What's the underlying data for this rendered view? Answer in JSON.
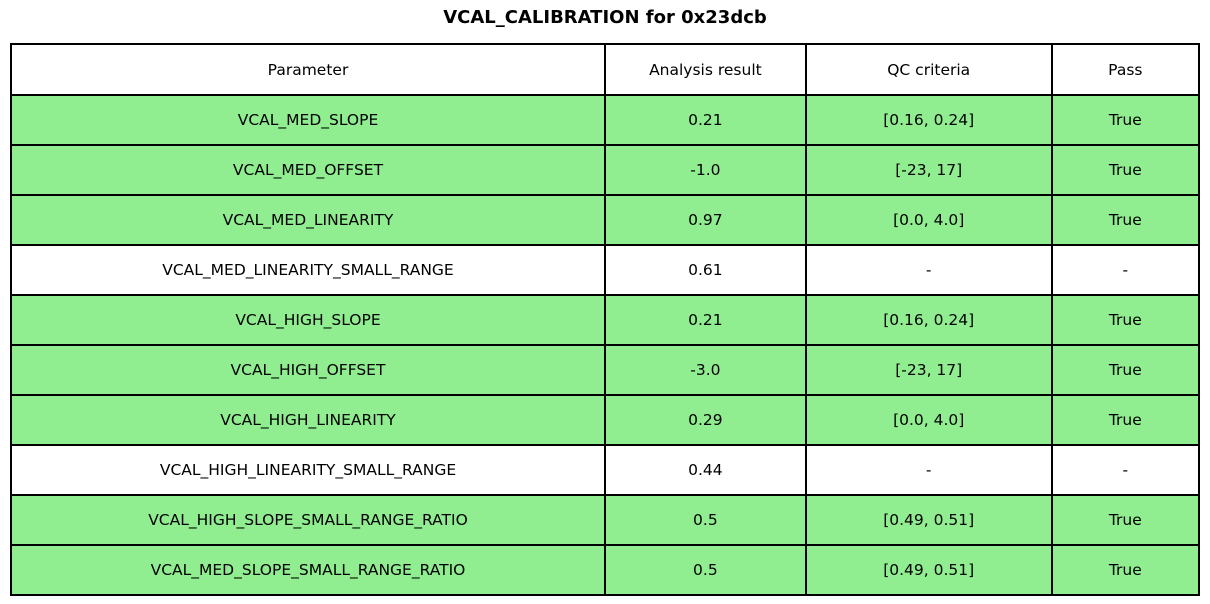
{
  "title": "VCAL_CALIBRATION for 0x23dcb",
  "colors": {
    "pass_row_green": "#90ee90",
    "neutral_row_white": "#ffffff",
    "border_black": "#000000"
  },
  "chart_data": {
    "type": "table",
    "title": "VCAL_CALIBRATION for 0x23dcb",
    "columns": [
      "Parameter",
      "Analysis result",
      "QC criteria",
      "Pass"
    ],
    "rows": [
      {
        "parameter": "VCAL_MED_SLOPE",
        "result": "0.21",
        "criteria": "[0.16, 0.24]",
        "pass": "True",
        "highlight": true
      },
      {
        "parameter": "VCAL_MED_OFFSET",
        "result": "-1.0",
        "criteria": "[-23, 17]",
        "pass": "True",
        "highlight": true
      },
      {
        "parameter": "VCAL_MED_LINEARITY",
        "result": "0.97",
        "criteria": "[0.0, 4.0]",
        "pass": "True",
        "highlight": true
      },
      {
        "parameter": "VCAL_MED_LINEARITY_SMALL_RANGE",
        "result": "0.61",
        "criteria": "-",
        "pass": "-",
        "highlight": false
      },
      {
        "parameter": "VCAL_HIGH_SLOPE",
        "result": "0.21",
        "criteria": "[0.16, 0.24]",
        "pass": "True",
        "highlight": true
      },
      {
        "parameter": "VCAL_HIGH_OFFSET",
        "result": "-3.0",
        "criteria": "[-23, 17]",
        "pass": "True",
        "highlight": true
      },
      {
        "parameter": "VCAL_HIGH_LINEARITY",
        "result": "0.29",
        "criteria": "[0.0, 4.0]",
        "pass": "True",
        "highlight": true
      },
      {
        "parameter": "VCAL_HIGH_LINEARITY_SMALL_RANGE",
        "result": "0.44",
        "criteria": "-",
        "pass": "-",
        "highlight": false
      },
      {
        "parameter": "VCAL_HIGH_SLOPE_SMALL_RANGE_RATIO",
        "result": "0.5",
        "criteria": "[0.49, 0.51]",
        "pass": "True",
        "highlight": true
      },
      {
        "parameter": "VCAL_MED_SLOPE_SMALL_RANGE_RATIO",
        "result": "0.5",
        "criteria": "[0.49, 0.51]",
        "pass": "True",
        "highlight": true
      }
    ]
  }
}
